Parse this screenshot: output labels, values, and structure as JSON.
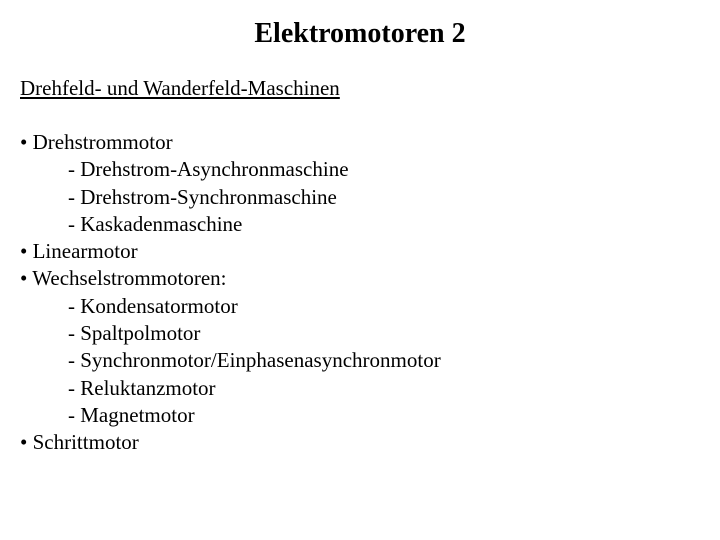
{
  "title": "Elektromotoren 2",
  "section_heading": "Drehfeld- und Wanderfeld-Maschinen",
  "items": {
    "t0": "Drehstrommotor",
    "t0s0": "Drehstrom-Asynchronmaschine",
    "t0s1": "Drehstrom-Synchronmaschine",
    "t0s2": "Kaskadenmaschine",
    "t1": "Linearmotor",
    "t2": "Wechselstrommotoren:",
    "t2s0": "Kondensatormotor",
    "t2s1": "Spaltpolmotor",
    "t2s2": "Synchronmotor/Einphasenasynchronmotor",
    "t2s3": "Reluktanzmotor",
    "t2s4": "Magnetmotor",
    "t3": "Schrittmotor"
  },
  "colors": {
    "background": "#ffffff",
    "text": "#000000"
  },
  "typography": {
    "title_fontsize": 28,
    "body_fontsize": 21,
    "font_family": "Times New Roman"
  }
}
